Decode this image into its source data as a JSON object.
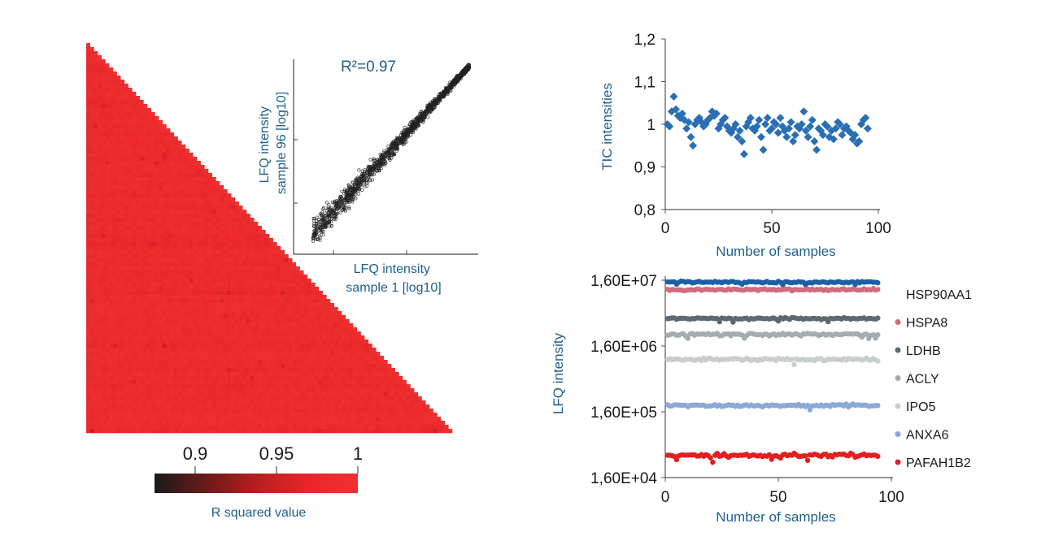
{
  "chart_data": [
    {
      "id": "heatmap",
      "type": "heatmap",
      "layout": "lower-triangle",
      "n_samples": 96,
      "value_range": [
        0.88,
        1.0
      ],
      "diagonal_value": 1.0,
      "colorbar": {
        "label": "R squared value",
        "ticks": [
          "0.9",
          "0.95",
          "1"
        ],
        "tick_values": [
          0.9,
          0.95,
          1.0
        ],
        "range": [
          0.875,
          1.0
        ],
        "colors": [
          "#1a1a1a",
          "#6a1a1a",
          "#b81e1e",
          "#e8262a",
          "#f03030"
        ]
      }
    },
    {
      "id": "inset-scatter",
      "type": "scatter",
      "annotation": "R²=0.97",
      "xlabel": "LFQ intensity\nsample 1 [log10]",
      "ylabel": "LFQ intensity\nsample 96 [log10]",
      "xlim": [
        0,
        10
      ],
      "ylim": [
        0,
        10
      ],
      "r_squared": 0.97,
      "trend": {
        "x": [
          0.9,
          9.5
        ],
        "y": [
          0.9,
          9.5
        ]
      },
      "point_color": "#222222"
    },
    {
      "id": "tic",
      "type": "scatter",
      "xlabel": "Number of samples",
      "ylabel": "TIC intensities",
      "xlim": [
        0,
        100
      ],
      "ylim": [
        0.8,
        1.2
      ],
      "xticks": [
        "0",
        "50",
        "100"
      ],
      "xtick_values": [
        0,
        50,
        100
      ],
      "yticks": [
        "0,8",
        "0,9",
        "1",
        "1,1",
        "1,2"
      ],
      "ytick_values": [
        0.8,
        0.9,
        1.0,
        1.1,
        1.2
      ],
      "marker": "diamond",
      "color": "#2a6fb5",
      "x": [
        1,
        2,
        3,
        4,
        5,
        6,
        7,
        8,
        9,
        10,
        11,
        12,
        13,
        14,
        15,
        16,
        17,
        18,
        19,
        20,
        21,
        22,
        23,
        24,
        25,
        26,
        27,
        28,
        29,
        30,
        31,
        32,
        33,
        34,
        35,
        36,
        37,
        38,
        39,
        40,
        41,
        42,
        43,
        44,
        45,
        46,
        47,
        48,
        49,
        50,
        51,
        52,
        53,
        54,
        55,
        56,
        57,
        58,
        59,
        60,
        61,
        62,
        63,
        64,
        65,
        66,
        67,
        68,
        69,
        70,
        71,
        72,
        73,
        74,
        75,
        76,
        77,
        78,
        79,
        80,
        81,
        82,
        83,
        84,
        85,
        86,
        87,
        88,
        89,
        90,
        91,
        92,
        93,
        94,
        95
      ],
      "y": [
        1.0,
        0.995,
        1.03,
        1.065,
        1.035,
        1.02,
        1.015,
        1.025,
        1.01,
        0.99,
        1.005,
        0.97,
        0.95,
        1.0,
        1.01,
        1.015,
        1.005,
        0.995,
        1.0,
        1.01,
        1.015,
        1.03,
        1.02,
        1.025,
        0.99,
        1.0,
        1.01,
        1.015,
        0.995,
        0.985,
        0.98,
        0.99,
        1.0,
        0.97,
        0.985,
        0.96,
        0.93,
        0.995,
        1.005,
        1.015,
        0.99,
        0.985,
        0.995,
        1.01,
        0.97,
        0.94,
        1.0,
        1.015,
        0.985,
        0.99,
        1.005,
        1.0,
        0.98,
        1.015,
        0.995,
        0.985,
        0.97,
        0.99,
        1.005,
        0.96,
        0.975,
        0.995,
        0.99,
        1.0,
        1.03,
        0.985,
        0.97,
        0.995,
        1.01,
        0.96,
        0.94,
        0.99,
        0.985,
        0.975,
        1.0,
        0.995,
        0.97,
        0.985,
        0.965,
        0.99,
        1.005,
        1.0,
        0.975,
        0.99,
        0.995,
        0.985,
        0.98,
        0.965,
        0.975,
        0.955,
        0.96,
        1.0,
        1.01,
        1.015,
        0.99
      ]
    },
    {
      "id": "lfq",
      "type": "scatter",
      "xlabel": "Number of samples",
      "ylabel": "LFQ intensity",
      "xlim": [
        0,
        100
      ],
      "ylog": true,
      "ylim": [
        16000.0,
        16000000.0
      ],
      "xticks": [
        "0",
        "50",
        "100"
      ],
      "xtick_values": [
        0,
        50,
        100
      ],
      "yticks": [
        "1,60E+04",
        "1,60E+05",
        "1,60E+06",
        "1,60E+07"
      ],
      "ytick_values": [
        16000,
        160000,
        1600000,
        16000000
      ],
      "n_points": 94,
      "series": [
        {
          "name": "HSP90AA1",
          "color": "#1f5fa8",
          "level": 15000000.0,
          "jitter": 0.012,
          "legend_marker": false
        },
        {
          "name": "HSPA8",
          "color": "#d36a7e",
          "level": 11500000.0,
          "jitter": 0.015,
          "legend_marker": true
        },
        {
          "name": "LDHB",
          "color": "#5a6a70",
          "level": 4200000.0,
          "jitter": 0.015,
          "legend_marker": true
        },
        {
          "name": "ACLY",
          "color": "#a4adb0",
          "level": 2400000.0,
          "jitter": 0.018,
          "legend_marker": true
        },
        {
          "name": "IPO5",
          "color": "#c8cdcf",
          "level": 1000000.0,
          "jitter": 0.022,
          "legend_marker": true
        },
        {
          "name": "ANXA6",
          "color": "#8aa8d8",
          "level": 200000.0,
          "jitter": 0.018,
          "legend_marker": true
        },
        {
          "name": "PAFAH1B2",
          "color": "#e02020",
          "level": 35000.0,
          "jitter": 0.03,
          "legend_marker": true
        }
      ]
    }
  ]
}
